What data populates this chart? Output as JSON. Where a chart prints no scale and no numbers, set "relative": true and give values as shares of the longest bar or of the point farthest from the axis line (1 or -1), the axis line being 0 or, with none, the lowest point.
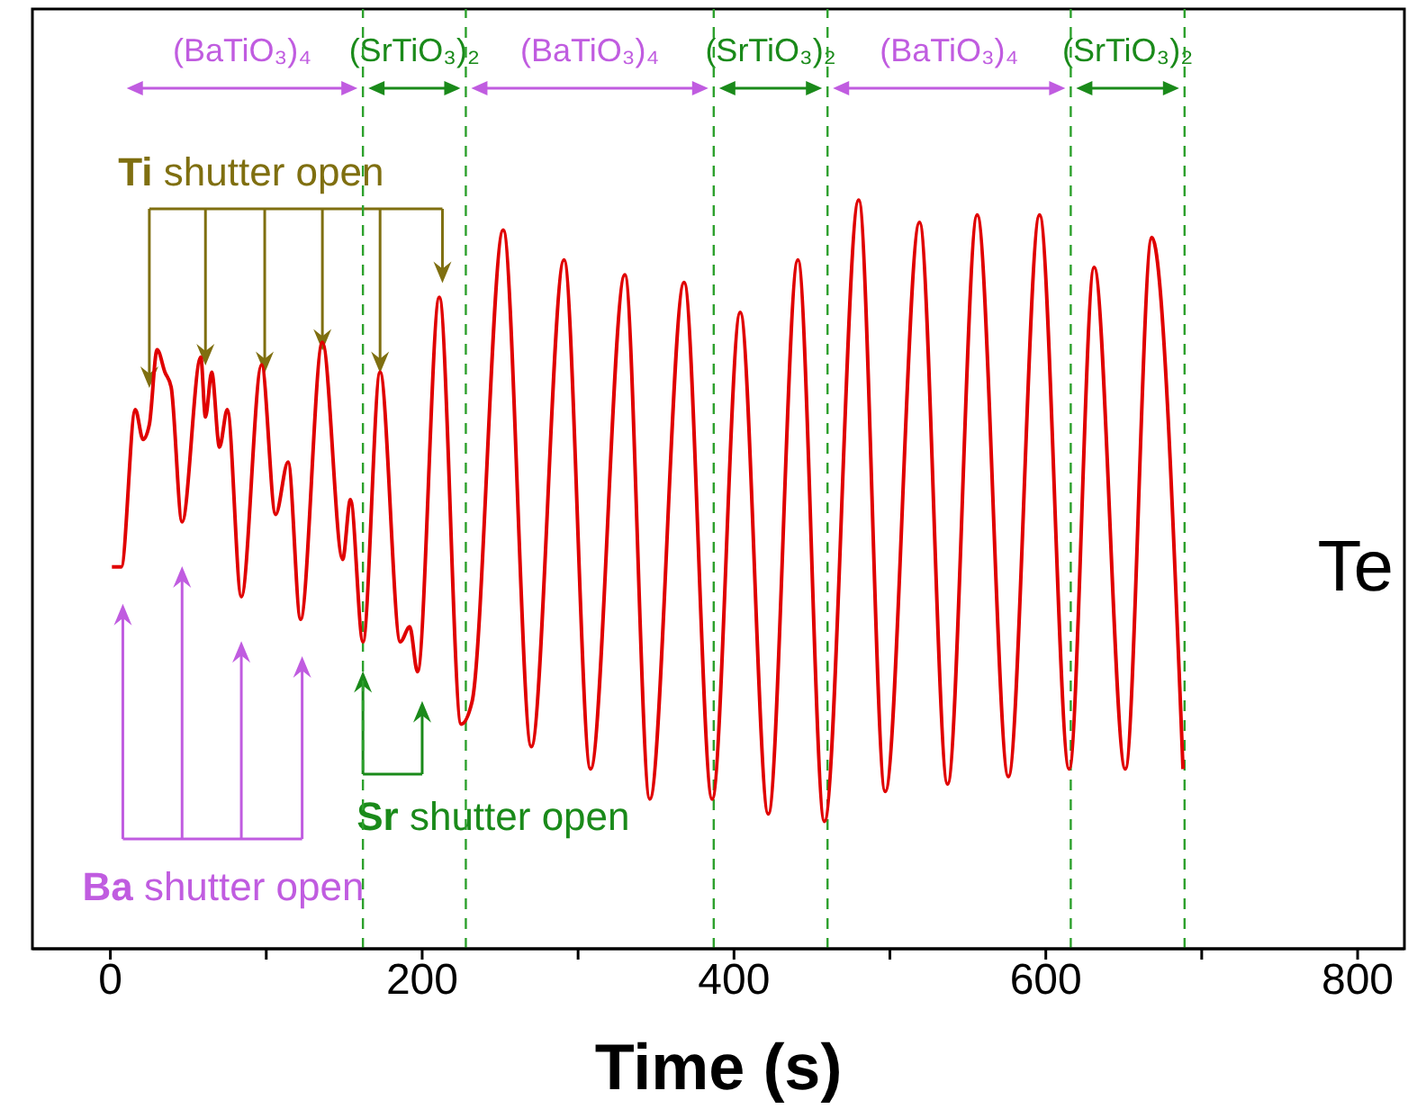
{
  "chart_data": {
    "type": "line",
    "relative": true,
    "xlabel": "Time (s)",
    "xlim": [
      -50,
      830
    ],
    "xticks": [
      0,
      {
        "value": 100,
        "label": null
      },
      200,
      {
        "value": 300,
        "label": null
      },
      400,
      {
        "value": 500,
        "label": null
      },
      600,
      {
        "value": 700,
        "label": null
      },
      800
    ],
    "series": [
      {
        "color": "#e00000",
        "x": [
          1,
          7,
          16,
          21,
          25,
          30,
          35,
          39,
          46,
          58,
          61,
          65,
          70,
          75,
          84,
          97,
          106,
          114,
          122,
          136,
          149,
          154,
          162,
          173,
          186,
          192,
          197,
          211,
          225,
          232,
          252,
          270,
          291,
          308,
          330,
          346,
          368,
          386,
          404,
          422,
          441,
          458,
          480,
          497,
          519,
          537,
          556,
          576,
          596,
          615,
          631,
          651,
          668,
          688
        ],
        "values": [
          0.51,
          0.51,
          0.72,
          0.68,
          0.7,
          0.8,
          0.77,
          0.75,
          0.57,
          0.79,
          0.71,
          0.77,
          0.67,
          0.72,
          0.47,
          0.78,
          0.58,
          0.65,
          0.44,
          0.81,
          0.52,
          0.6,
          0.41,
          0.77,
          0.41,
          0.43,
          0.37,
          0.87,
          0.3,
          0.33,
          0.96,
          0.27,
          0.92,
          0.24,
          0.9,
          0.2,
          0.89,
          0.2,
          0.85,
          0.18,
          0.92,
          0.17,
          1.0,
          0.21,
          0.97,
          0.22,
          0.98,
          0.23,
          0.98,
          0.24,
          0.91,
          0.24,
          0.95,
          0.24
        ]
      }
    ],
    "ref_lines": [
      {
        "axis": "x",
        "value": 162,
        "color": "#2ca02c",
        "line_style": "dashed"
      },
      {
        "axis": "x",
        "value": 228,
        "color": "#2ca02c",
        "line_style": "dashed"
      },
      {
        "axis": "x",
        "value": 387,
        "color": "#2ca02c",
        "line_style": "dashed"
      },
      {
        "axis": "x",
        "value": 460,
        "color": "#2ca02c",
        "line_style": "dashed"
      },
      {
        "axis": "x",
        "value": 616,
        "color": "#2ca02c",
        "line_style": "dashed"
      },
      {
        "axis": "x",
        "value": 689,
        "color": "#2ca02c",
        "line_style": "dashed"
      }
    ],
    "annotations": [
      "(BaTiO₃)₄",
      "(SrTiO₃)₂",
      "(BaTiO₃)₄",
      "(SrTiO₃)₂",
      "(BaTiO₃)₄",
      "(SrTiO₃)₂",
      "Ti shutter open",
      "Ba shutter open",
      "Sr shutter open",
      "Te"
    ],
    "marker": "none",
    "line_style": "solid"
  }
}
